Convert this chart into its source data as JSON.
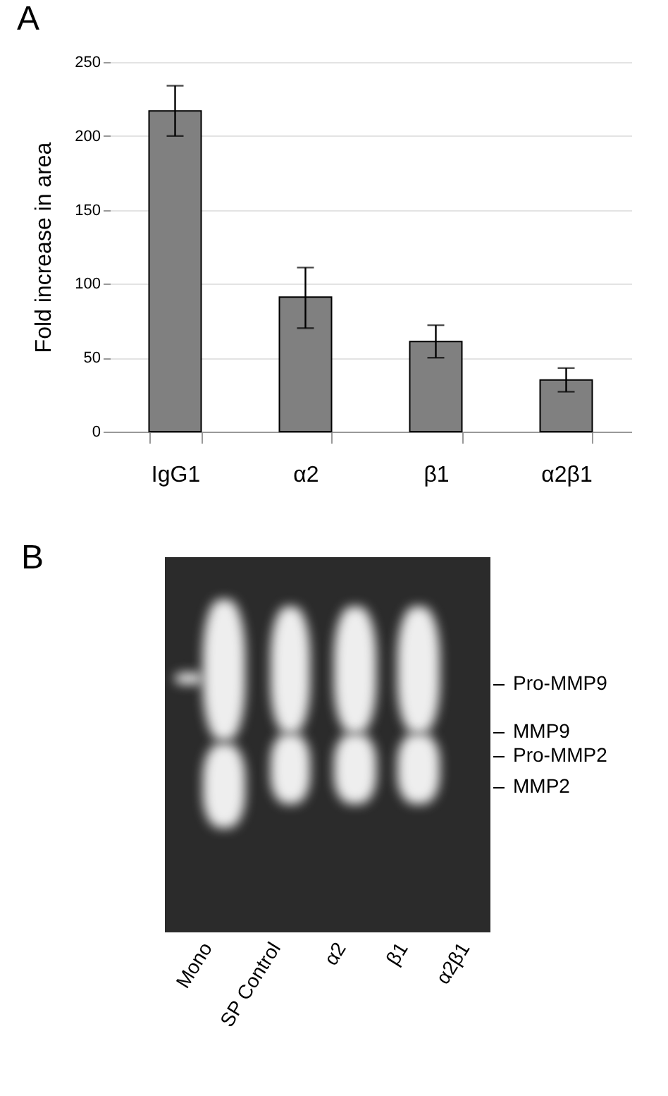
{
  "chart_data": [
    {
      "type": "bar",
      "title": "A",
      "ylabel": "Fold increase in area",
      "categories": [
        "IgG1",
        "α2",
        "β1",
        "α2β1"
      ],
      "values": [
        217,
        91,
        61,
        35
      ],
      "color": "#808080",
      "errors": [
        [
          200,
          234
        ],
        [
          70,
          111
        ],
        [
          50,
          72
        ],
        [
          27,
          43
        ]
      ],
      "ylim": [
        0,
        250
      ],
      "yticks": [
        0,
        50,
        100,
        150,
        200,
        250
      ],
      "grid": "y"
    },
    {
      "type": "other",
      "title": "B",
      "categories": [
        "Mono",
        "SP Control",
        "α2",
        "β1",
        "α2β1"
      ],
      "annotations": [
        "Pro-MMP9",
        "MMP9",
        "Pro-MMP2",
        "MMP2"
      ]
    }
  ]
}
